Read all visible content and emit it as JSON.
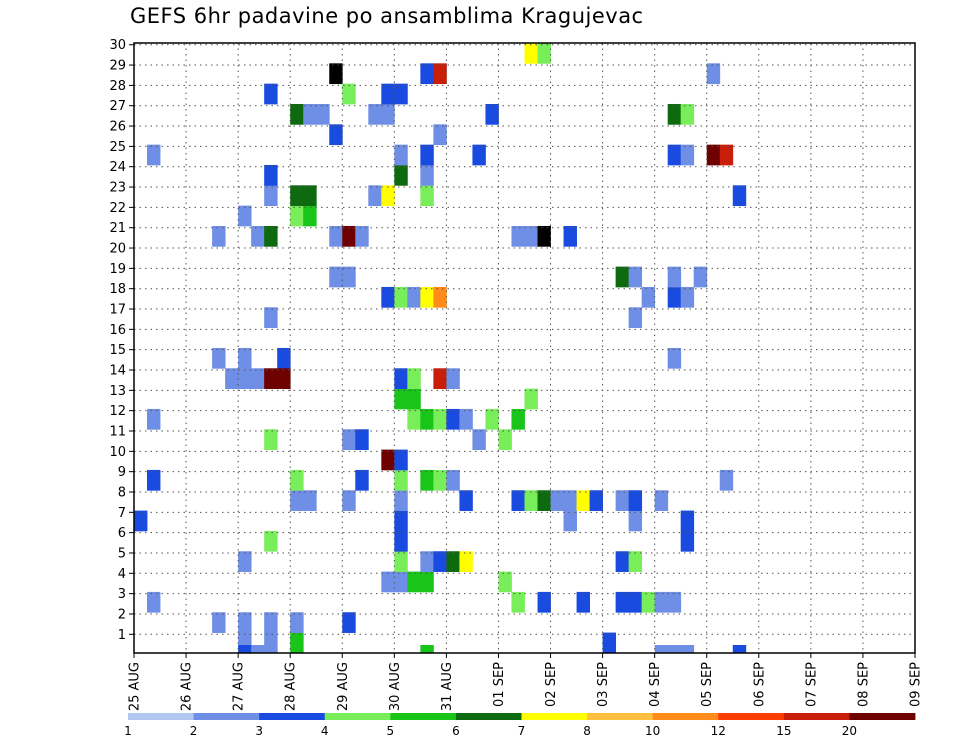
{
  "title": "GEFS 6hr padavine po ansamblima Kragujevac",
  "chart_data": {
    "type": "heatmap",
    "title": "GEFS 6hr padavine po ansamblima Kragujevac",
    "x_tick_labels": [
      "25 AUG",
      "26 AUG",
      "27 AUG",
      "28 AUG",
      "29 AUG",
      "30 AUG",
      "31 AUG",
      "01 SEP",
      "02 SEP",
      "03 SEP",
      "04 SEP",
      "05 SEP",
      "06 SEP",
      "07 SEP",
      "08 SEP",
      "09 SEP"
    ],
    "y_tick_labels": [
      1,
      2,
      3,
      4,
      5,
      6,
      7,
      8,
      9,
      10,
      11,
      12,
      13,
      14,
      15,
      16,
      17,
      18,
      19,
      20,
      21,
      22,
      23,
      24,
      25,
      26,
      27,
      28,
      29,
      30
    ],
    "x_unit": "6-hour step from 25 AUG 00Z (4 per day)",
    "y_unit": "ensemble member",
    "legend": {
      "labels": [
        "1",
        "2",
        "3",
        "4",
        "5",
        "6",
        "7",
        "8",
        "10",
        "12",
        "15",
        "20"
      ],
      "colors": [
        "#b2c8f2",
        "#6f8fe6",
        "#1a4be0",
        "#78ee5a",
        "#19c519",
        "#0e6a0e",
        "#ffff00",
        "#ffc040",
        "#ff8c1a",
        "#ff3d00",
        "#c81e0a",
        "#6e0000"
      ],
      "placement": "bottom"
    },
    "cells": [
      [
        0,
        23,
        2
      ],
      [
        1,
        27,
        1
      ],
      [
        1,
        21,
        2
      ],
      [
        1,
        18,
        1
      ],
      [
        1,
        5,
        1
      ],
      [
        6,
        28,
        1
      ],
      [
        6,
        15,
        1
      ],
      [
        6,
        9,
        1
      ],
      [
        7,
        16,
        1
      ],
      [
        8,
        29,
        1
      ],
      [
        8,
        28,
        1
      ],
      [
        8,
        25,
        1
      ],
      [
        8,
        16,
        1
      ],
      [
        8,
        15,
        1
      ],
      [
        8,
        8,
        1
      ],
      [
        8,
        -1,
        2
      ],
      [
        9,
        -1,
        1
      ],
      [
        9,
        9,
        1
      ],
      [
        9,
        16,
        1
      ],
      [
        10,
        28,
        1
      ],
      [
        10,
        29,
        1
      ],
      [
        10,
        24,
        3
      ],
      [
        10,
        19,
        3
      ],
      [
        10,
        16,
        11
      ],
      [
        10,
        13,
        1
      ],
      [
        10,
        9,
        5
      ],
      [
        10,
        7,
        1
      ],
      [
        10,
        6,
        2
      ],
      [
        10,
        2,
        2
      ],
      [
        10,
        -1,
        1
      ],
      [
        11,
        15,
        2
      ],
      [
        11,
        16,
        11
      ],
      [
        12,
        29,
        4
      ],
      [
        12,
        28,
        1
      ],
      [
        12,
        22,
        1
      ],
      [
        12,
        21,
        3
      ],
      [
        12,
        8,
        3
      ],
      [
        12,
        7,
        5
      ],
      [
        12,
        3,
        5
      ],
      [
        13,
        22,
        1
      ],
      [
        13,
        8,
        4
      ],
      [
        13,
        7,
        5
      ],
      [
        13,
        3,
        1
      ],
      [
        14,
        3,
        1
      ],
      [
        15,
        11,
        1
      ],
      [
        15,
        9,
        1
      ],
      [
        15,
        4,
        2
      ],
      [
        15,
        1,
        13
      ],
      [
        16,
        28,
        2
      ],
      [
        16,
        22,
        1
      ],
      [
        16,
        19,
        1
      ],
      [
        16,
        11,
        1
      ],
      [
        16,
        9,
        11
      ],
      [
        16,
        2,
        3
      ],
      [
        17,
        21,
        2
      ],
      [
        17,
        19,
        2
      ],
      [
        17,
        9,
        1
      ],
      [
        18,
        7,
        1
      ],
      [
        18,
        3,
        1
      ],
      [
        19,
        26,
        1
      ],
      [
        19,
        20,
        11
      ],
      [
        19,
        12,
        2
      ],
      [
        19,
        7,
        6
      ],
      [
        19,
        3,
        1
      ],
      [
        19,
        2,
        2
      ],
      [
        20,
        26,
        1
      ],
      [
        20,
        25,
        3
      ],
      [
        20,
        24,
        2
      ],
      [
        20,
        23,
        2
      ],
      [
        20,
        22,
        1
      ],
      [
        20,
        21,
        3
      ],
      [
        20,
        20,
        2
      ],
      [
        20,
        17,
        4
      ],
      [
        20,
        16,
        2
      ],
      [
        20,
        12,
        3
      ],
      [
        20,
        6,
        5
      ],
      [
        20,
        5,
        1
      ],
      [
        20,
        2,
        2
      ],
      [
        21,
        26,
        4
      ],
      [
        21,
        18,
        3
      ],
      [
        21,
        17,
        4
      ],
      [
        21,
        16,
        3
      ],
      [
        21,
        12,
        1
      ],
      [
        22,
        26,
        4
      ],
      [
        22,
        25,
        1
      ],
      [
        22,
        21,
        4
      ],
      [
        22,
        18,
        4
      ],
      [
        22,
        12,
        6
      ],
      [
        22,
        7,
        3
      ],
      [
        22,
        6,
        1
      ],
      [
        22,
        5,
        2
      ],
      [
        22,
        1,
        2
      ],
      [
        22,
        -1,
        4
      ],
      [
        23,
        25,
        2
      ],
      [
        23,
        21,
        3
      ],
      [
        23,
        18,
        3
      ],
      [
        23,
        16,
        10
      ],
      [
        23,
        12,
        8
      ],
      [
        23,
        4,
        1
      ],
      [
        23,
        1,
        10
      ],
      [
        24,
        25,
        5
      ],
      [
        24,
        21,
        1
      ],
      [
        24,
        18,
        2
      ],
      [
        24,
        16,
        1
      ],
      [
        25,
        25,
        6
      ],
      [
        25,
        22,
        2
      ],
      [
        25,
        18,
        1
      ],
      [
        26,
        19,
        1
      ],
      [
        26,
        5,
        2
      ],
      [
        27,
        18,
        3
      ],
      [
        27,
        3,
        2
      ],
      [
        28,
        26,
        3
      ],
      [
        28,
        19,
        3
      ],
      [
        29,
        27,
        3
      ],
      [
        29,
        22,
        2
      ],
      [
        29,
        18,
        4
      ],
      [
        29,
        9,
        1
      ],
      [
        30,
        22,
        3
      ],
      [
        30,
        17,
        3
      ],
      [
        30,
        9,
        1
      ],
      [
        30,
        0,
        6
      ],
      [
        31,
        27,
        2
      ],
      [
        31,
        22,
        5
      ],
      [
        31,
        9,
        13
      ],
      [
        31,
        0,
        3
      ],
      [
        32,
        22,
        1
      ],
      [
        33,
        22,
        1
      ],
      [
        33,
        23,
        1
      ],
      [
        33,
        9,
        2
      ],
      [
        34,
        22,
        6
      ],
      [
        34,
        27,
        2
      ],
      [
        35,
        22,
        2
      ],
      [
        36,
        29,
        2
      ],
      [
        37,
        27,
        2
      ],
      [
        37,
        25,
        2
      ],
      [
        37,
        22,
        1
      ],
      [
        37,
        11,
        5
      ],
      [
        38,
        27,
        2
      ],
      [
        38,
        25,
        3
      ],
      [
        38,
        23,
        1
      ],
      [
        38,
        22,
        2
      ],
      [
        38,
        13,
        1
      ],
      [
        38,
        11,
        1
      ],
      [
        39,
        27,
        3
      ],
      [
        39,
        12,
        1
      ],
      [
        40,
        27,
        1
      ],
      [
        40,
        22,
        1
      ],
      [
        40,
        -1,
        1
      ],
      [
        41,
        27,
        1
      ],
      [
        41,
        15,
        1
      ],
      [
        41,
        12,
        2
      ],
      [
        41,
        11,
        1
      ],
      [
        41,
        5,
        2
      ],
      [
        41,
        3,
        5
      ],
      [
        41,
        -1,
        1
      ],
      [
        42,
        23,
        2
      ],
      [
        42,
        24,
        2
      ],
      [
        42,
        12,
        1
      ],
      [
        42,
        5,
        1
      ],
      [
        42,
        3,
        3
      ],
      [
        42,
        -1,
        1
      ],
      [
        43,
        11,
        1
      ],
      [
        44,
        5,
        11
      ],
      [
        44,
        1,
        1
      ],
      [
        45,
        21,
        1
      ],
      [
        45,
        5,
        10
      ],
      [
        46,
        7,
        2
      ],
      [
        46,
        -1,
        2
      ]
    ]
  }
}
